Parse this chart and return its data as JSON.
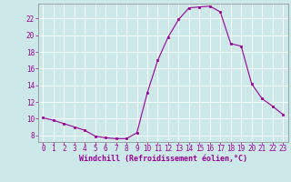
{
  "x": [
    0,
    1,
    2,
    3,
    4,
    5,
    6,
    7,
    8,
    9,
    10,
    11,
    12,
    13,
    14,
    15,
    16,
    17,
    18,
    19,
    20,
    21,
    22,
    23
  ],
  "y": [
    10.1,
    9.8,
    9.4,
    9.0,
    8.6,
    7.9,
    7.7,
    7.6,
    7.6,
    8.3,
    13.1,
    17.0,
    19.8,
    21.9,
    23.3,
    23.4,
    23.5,
    22.8,
    19.0,
    18.7,
    14.2,
    12.4,
    11.5,
    10.5
  ],
  "line_color": "#990099",
  "marker": "s",
  "marker_size": 2,
  "bg_color": "#cce8e8",
  "grid_color": "#ffffff",
  "xlabel": "Windchill (Refroidissement éolien,°C)",
  "xlabel_color": "#990099",
  "tick_color": "#990099",
  "axis_color": "#888888",
  "xlim": [
    -0.5,
    23.5
  ],
  "ylim": [
    7.2,
    23.8
  ],
  "yticks": [
    8,
    10,
    12,
    14,
    16,
    18,
    20,
    22
  ],
  "xticks": [
    0,
    1,
    2,
    3,
    4,
    5,
    6,
    7,
    8,
    9,
    10,
    11,
    12,
    13,
    14,
    15,
    16,
    17,
    18,
    19,
    20,
    21,
    22,
    23
  ],
  "tick_fontsize": 5.5,
  "xlabel_fontsize": 6.0
}
